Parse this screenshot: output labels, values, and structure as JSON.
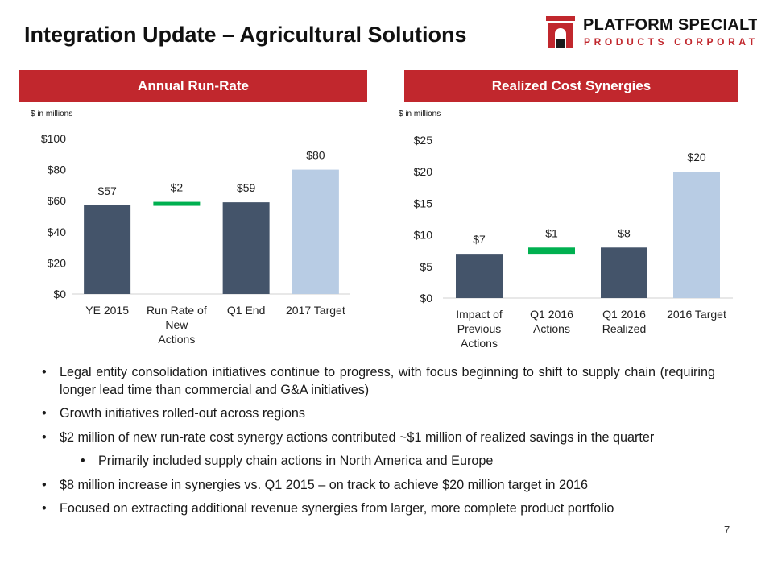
{
  "title": "Integration Update – Agricultural Solutions",
  "logo": {
    "line1": "PLATFORM SPECIALTY",
    "line2": "PRODUCTS CORPORATION"
  },
  "panels": {
    "left_header": "Annual Run-Rate",
    "right_header": "Realized Cost Synergies",
    "left_units": "$ in millions",
    "right_units": "$ in millions"
  },
  "colors": {
    "accent_red": "#c1272d",
    "bar_dark": "#44546a",
    "bar_light": "#b8cce4",
    "bar_green": "#00b050"
  },
  "chart_data": [
    {
      "type": "bar",
      "subtype": "waterfall",
      "categories": [
        [
          "YE 2015"
        ],
        [
          "Run Rate of",
          "New",
          "Actions"
        ],
        [
          "Q1 End"
        ],
        [
          "2017 Target"
        ]
      ],
      "values": [
        57,
        2,
        59,
        80
      ],
      "bar_roles": [
        "total",
        "increment",
        "total",
        "target"
      ],
      "data_labels": [
        "$57",
        "$2",
        "$59",
        "$80"
      ],
      "ylim": [
        0,
        100
      ],
      "yticks": [
        0,
        20,
        40,
        60,
        80,
        100
      ],
      "ytick_labels": [
        "$0",
        "$20",
        "$40",
        "$60",
        "$80",
        "$100"
      ],
      "grid": false
    },
    {
      "type": "bar",
      "subtype": "waterfall",
      "categories": [
        [
          "Impact of",
          "Previous",
          "Actions"
        ],
        [
          "Q1 2016",
          "Actions"
        ],
        [
          "Q1 2016",
          "Realized"
        ],
        [
          "2016 Target"
        ]
      ],
      "values": [
        7,
        1,
        8,
        20
      ],
      "bar_roles": [
        "total",
        "increment",
        "total",
        "target"
      ],
      "data_labels": [
        "$7",
        "$1",
        "$8",
        "$20"
      ],
      "ylim": [
        0,
        25
      ],
      "yticks": [
        0,
        5,
        10,
        15,
        20,
        25
      ],
      "ytick_labels": [
        "$0",
        "$5",
        "$10",
        "$15",
        "$20",
        "$25"
      ],
      "grid": false
    }
  ],
  "bullets": [
    {
      "text": "Legal entity consolidation initiatives continue to progress, with focus beginning to shift to supply chain (requiring longer lead time than commercial and G&A initiatives)",
      "level": 1
    },
    {
      "text": "Growth initiatives rolled-out across regions",
      "level": 1
    },
    {
      "text": "$2 million of new run-rate cost synergy actions contributed ~$1 million of realized savings in the quarter",
      "level": 1
    },
    {
      "text": "Primarily included supply chain actions in North America and Europe",
      "level": 2
    },
    {
      "text": "$8 million increase in synergies vs. Q1 2015 – on track to achieve $20 million target in 2016",
      "level": 1
    },
    {
      "text": "Focused on extracting additional revenue synergies from larger, more complete product portfolio",
      "level": 1
    }
  ],
  "page_number": "7"
}
